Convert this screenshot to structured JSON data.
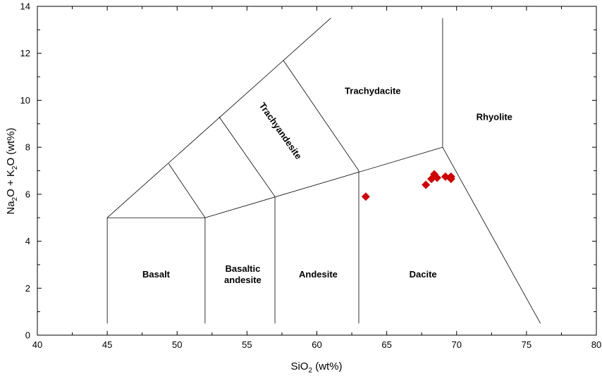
{
  "chart_data": {
    "type": "scatter",
    "xlabel": {
      "main": "SiO",
      "sub": "2",
      "tail": " (wt%)"
    },
    "ylabel": {
      "p1": "Na",
      "s1": "2",
      "p2": "O + K",
      "s2": "2",
      "p3": "O (wt%)"
    },
    "xlim": [
      40,
      80
    ],
    "ylim": [
      0,
      14
    ],
    "x_ticks": [
      "40",
      "45",
      "50",
      "55",
      "60",
      "65",
      "70",
      "75",
      "80"
    ],
    "y_ticks": [
      "0",
      "2",
      "4",
      "6",
      "8",
      "10",
      "12",
      "14"
    ],
    "grid": false,
    "marker": "diamond",
    "marker_color": "#cc0000",
    "points": [
      {
        "x": 63.5,
        "y": 5.9
      },
      {
        "x": 67.8,
        "y": 6.4
      },
      {
        "x": 68.2,
        "y": 6.65
      },
      {
        "x": 68.4,
        "y": 6.85
      },
      {
        "x": 68.6,
        "y": 6.7
      },
      {
        "x": 69.2,
        "y": 6.75
      },
      {
        "x": 69.6,
        "y": 6.65
      },
      {
        "x": 69.6,
        "y": 6.75
      }
    ],
    "fields": [
      {
        "name": "basalt",
        "lines": [
          "Basalt"
        ],
        "x": 48.5,
        "y": 2.6
      },
      {
        "name": "basaltic-andesite",
        "lines": [
          "Basaltic",
          "andesite"
        ],
        "x": 54.7,
        "y": 2.6
      },
      {
        "name": "andesite",
        "lines": [
          "Andesite"
        ],
        "x": 60.1,
        "y": 2.6
      },
      {
        "name": "dacite",
        "lines": [
          "Dacite"
        ],
        "x": 67.6,
        "y": 2.6
      },
      {
        "name": "trachydacite",
        "lines": [
          "Trachydacite"
        ],
        "x": 64.0,
        "y": 10.4
      },
      {
        "name": "rhyolite",
        "lines": [
          "Rhyolite"
        ],
        "x": 72.7,
        "y": 9.3
      },
      {
        "name": "trachyandesite",
        "lines": [
          "Trachyandesite"
        ],
        "x": 57.4,
        "y": 8.7,
        "rotate": 55
      }
    ],
    "boundaries": [
      [
        [
          45,
          0.5
        ],
        [
          45,
          5
        ],
        [
          52,
          5
        ],
        [
          52,
          0.5
        ]
      ],
      [
        [
          57,
          0.5
        ],
        [
          57,
          5.9
        ]
      ],
      [
        [
          63,
          0.5
        ],
        [
          63,
          7
        ]
      ],
      [
        [
          45,
          5
        ],
        [
          61,
          13.5
        ]
      ],
      [
        [
          52,
          5
        ],
        [
          69,
          8
        ]
      ],
      [
        [
          69,
          8
        ],
        [
          76,
          0.5
        ]
      ],
      [
        [
          69,
          8
        ],
        [
          69,
          13.5
        ]
      ],
      [
        [
          49.4,
          7.3
        ],
        [
          52,
          5
        ]
      ],
      [
        [
          53,
          9.3
        ],
        [
          57,
          5.9
        ]
      ],
      [
        [
          57.6,
          11.7
        ],
        [
          63,
          7
        ]
      ]
    ]
  }
}
